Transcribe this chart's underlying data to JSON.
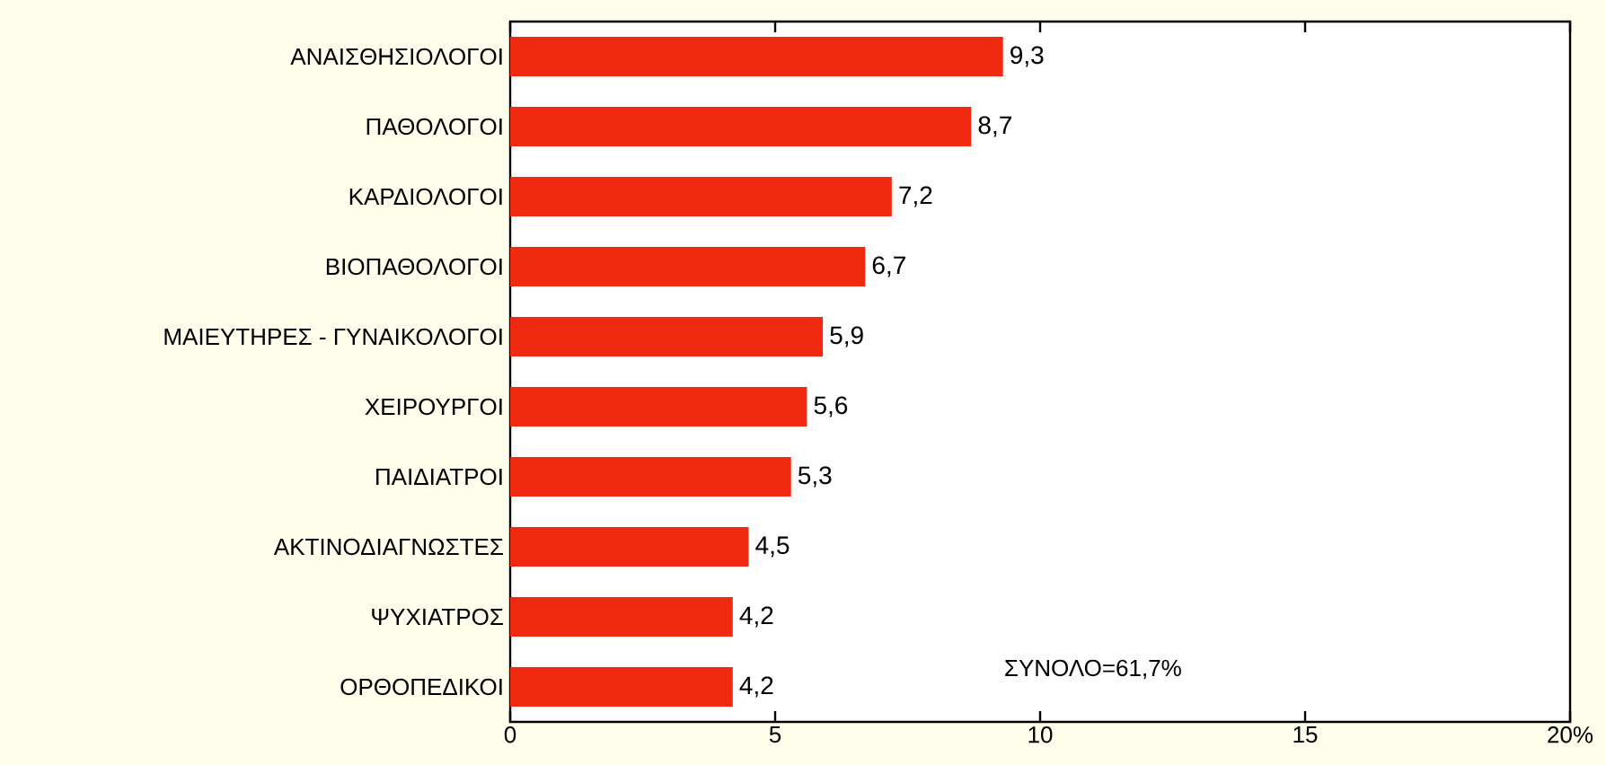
{
  "chart_data": {
    "type": "bar",
    "orientation": "horizontal",
    "categories": [
      "ΑΝΑΙΣΘΗΣΙΟΛΟΓΟΙ",
      "ΠΑΘΟΛΟΓΟΙ",
      "ΚΑΡΔΙΟΛΟΓΟΙ",
      "ΒΙΟΠΑΘΟΛΟΓΟΙ",
      "ΜΑΙΕΥΤΗΡΕΣ - ΓΥΝΑΙΚΟΛΟΓΟΙ",
      "ΧΕΙΡΟΥΡΓΟΙ",
      "ΠΑΙΔΙΑΤΡΟΙ",
      "ΑΚΤΙΝΟΔΙΑΓΝΩΣΤΕΣ",
      "ΨΥΧΙΑΤΡΟΣ",
      "ΟΡΘΟΠΕΔΙΚΟΙ"
    ],
    "values": [
      9.3,
      8.7,
      7.2,
      6.7,
      5.9,
      5.6,
      5.3,
      4.5,
      4.2,
      4.2
    ],
    "value_labels": [
      "9,3",
      "8,7",
      "7,2",
      "6,7",
      "5,9",
      "5,6",
      "5,3",
      "4,5",
      "4,2",
      "4,2"
    ],
    "color": "#f02a10",
    "xlim": [
      0,
      20
    ],
    "xticks": [
      0,
      5,
      10,
      15,
      {
        "value": 20,
        "label": "20%"
      }
    ],
    "annotations": [
      "ΣΥΝΟΛΟ=61,7%"
    ]
  }
}
